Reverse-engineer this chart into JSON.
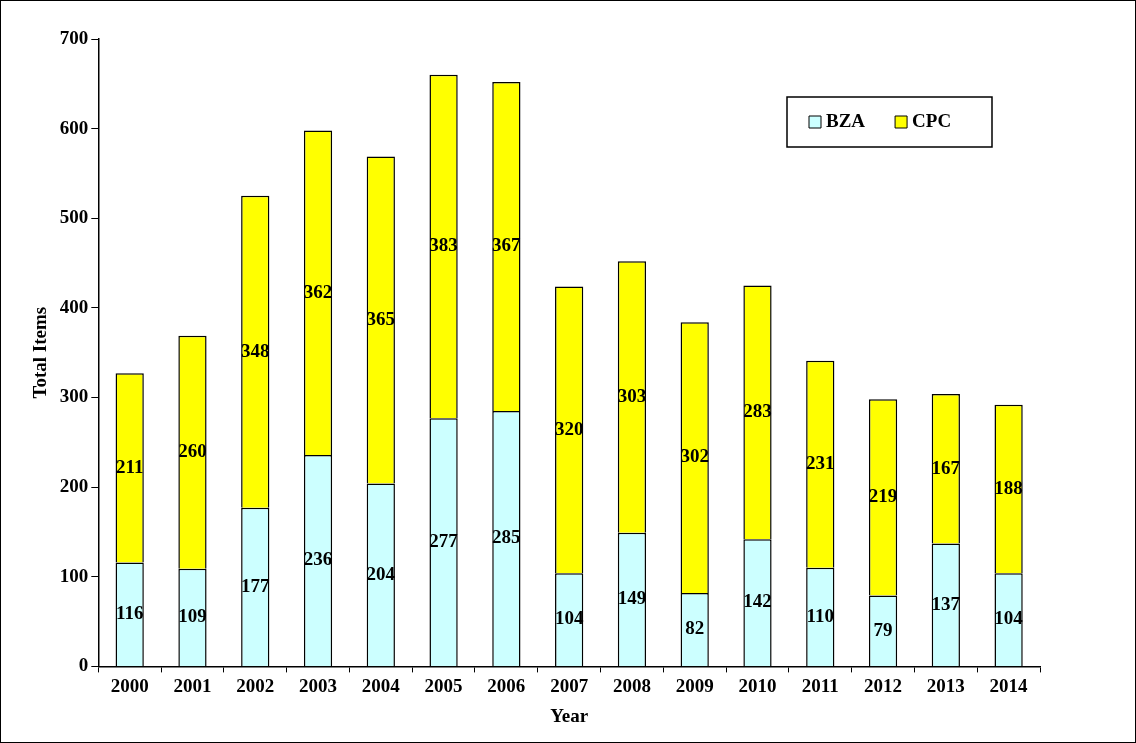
{
  "chart_data": {
    "type": "bar",
    "stacked": true,
    "xlabel": "Year",
    "ylabel": "Total Items",
    "categories": [
      "2000",
      "2001",
      "2002",
      "2003",
      "2004",
      "2005",
      "2006",
      "2007",
      "2008",
      "2009",
      "2010",
      "2011",
      "2012",
      "2013",
      "2014"
    ],
    "series": [
      {
        "name": "BZA",
        "color": "#ccffff",
        "values": [
          116,
          109,
          177,
          236,
          204,
          277,
          285,
          104,
          149,
          82,
          142,
          110,
          79,
          137,
          104
        ]
      },
      {
        "name": "CPC",
        "color": "#ffff00",
        "values": [
          211,
          260,
          348,
          362,
          365,
          383,
          367,
          320,
          303,
          302,
          283,
          231,
          219,
          167,
          188
        ]
      }
    ],
    "ylim": [
      0,
      700
    ],
    "yticks": [
      0,
      100,
      200,
      300,
      400,
      500,
      600,
      700
    ],
    "grid": false,
    "legend": "top right",
    "data_labels": true
  }
}
